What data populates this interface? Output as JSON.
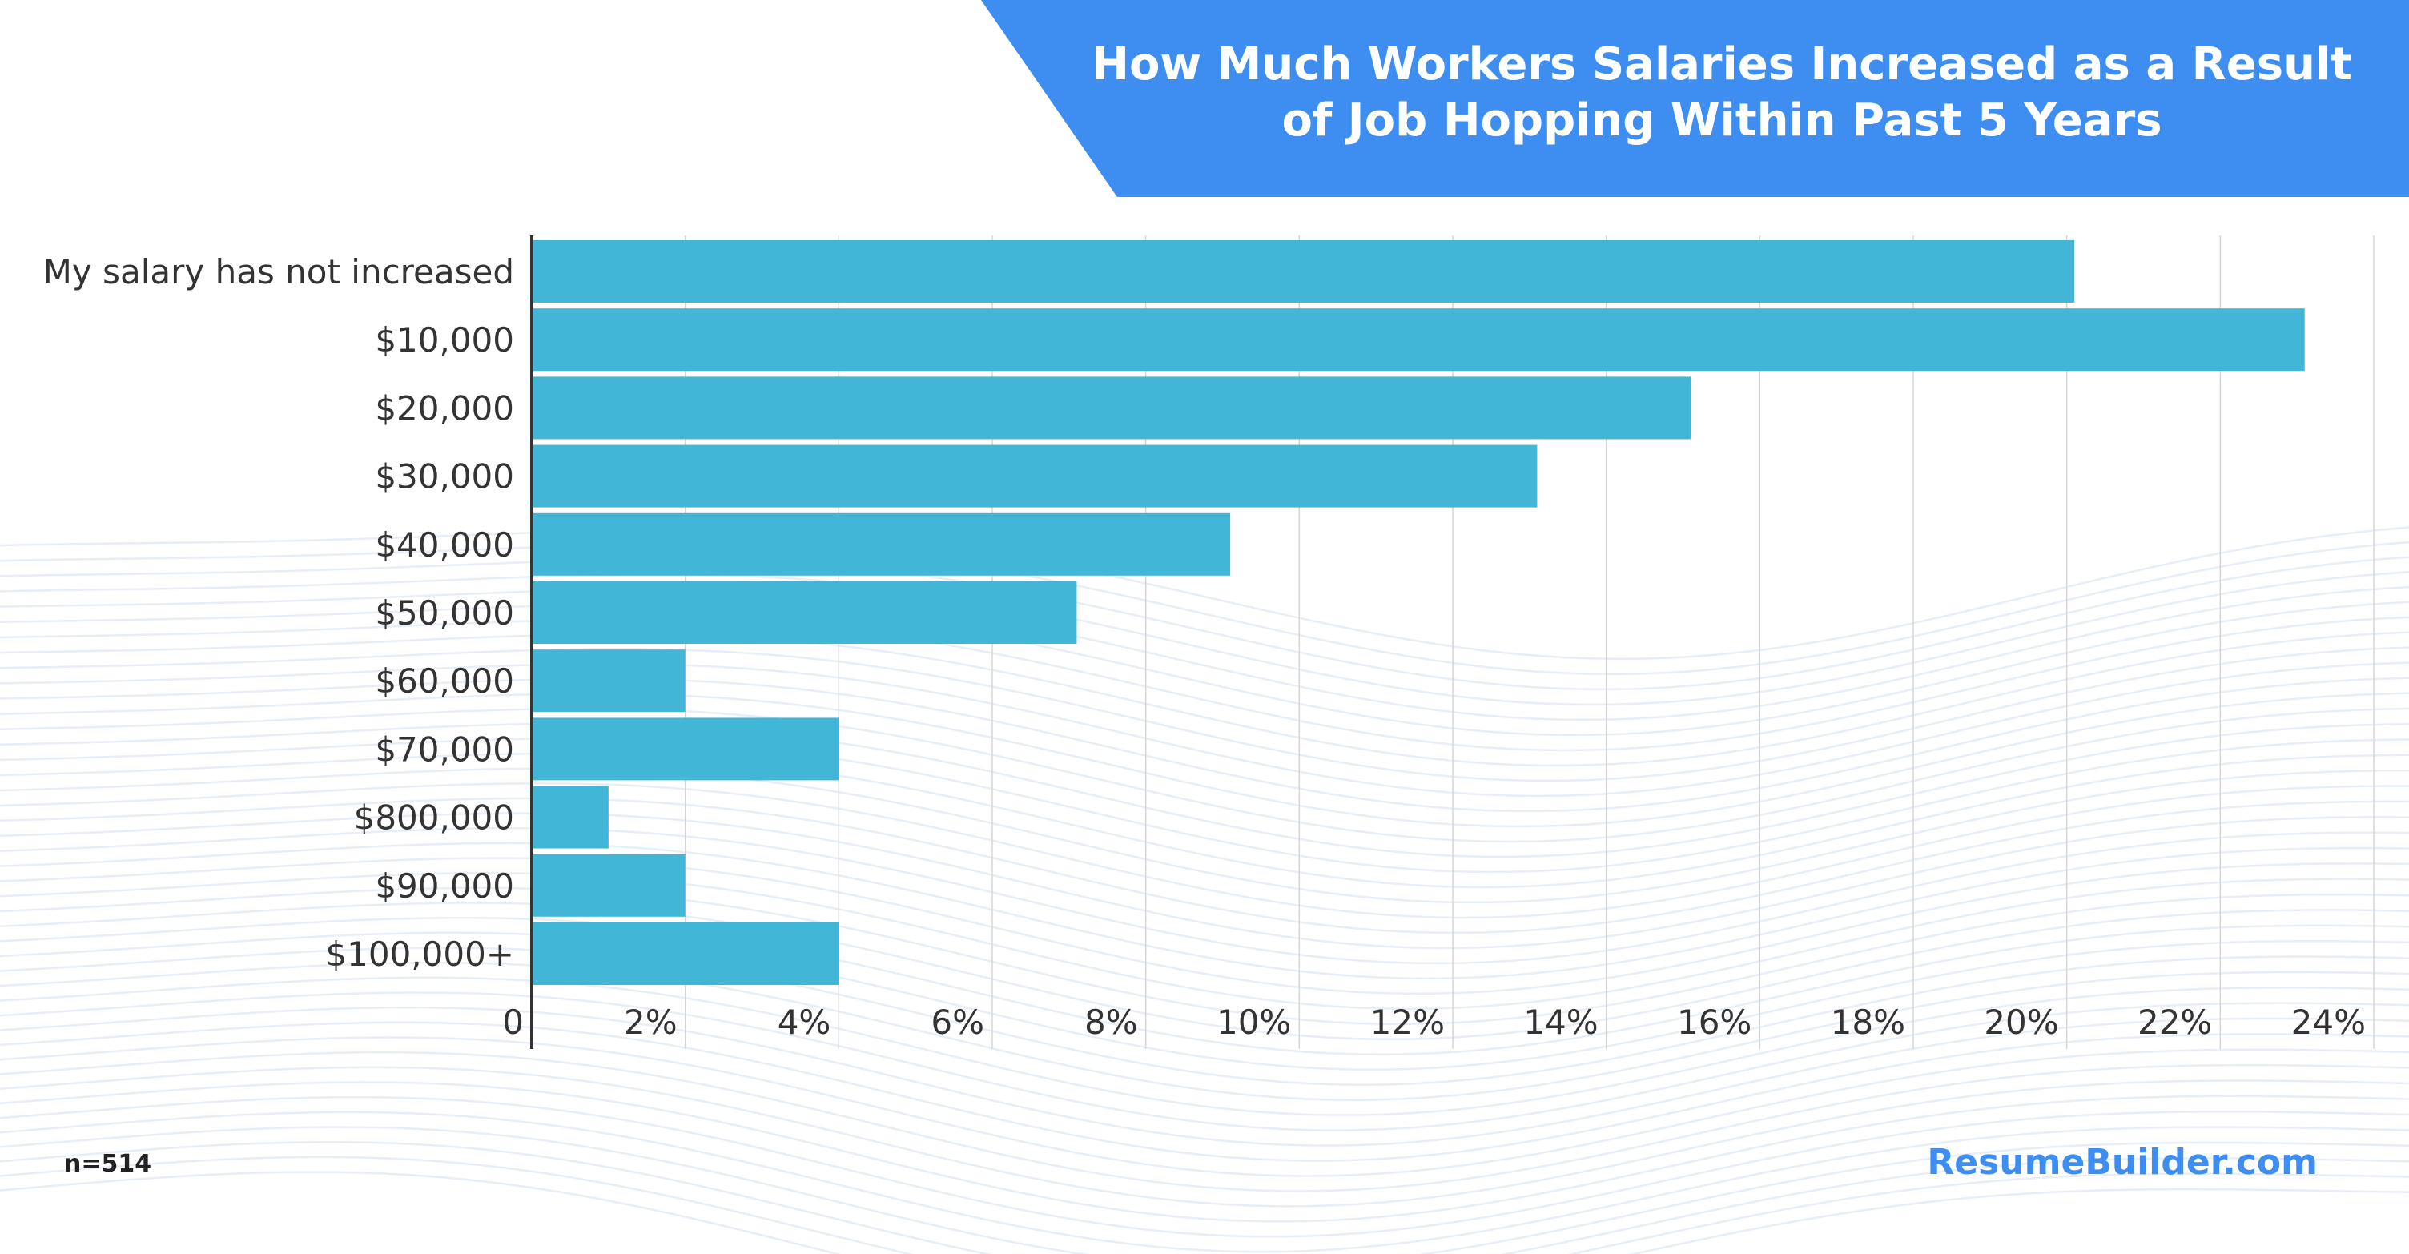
{
  "header": {
    "title_line1": "How Much Workers Salaries Increased as a Result",
    "title_line2": "of Job Hopping Within Past 5 Years",
    "banner_color": "#3d8ef0"
  },
  "footer": {
    "sample": "n=514",
    "brand": "ResumeBuilder.com",
    "brand_color": "#3d8ef0"
  },
  "chart_data": {
    "type": "bar",
    "orientation": "horizontal",
    "title": "How Much Workers Salaries Increased as a Result of Job Hopping Within Past 5 Years",
    "categories": [
      "My salary has not increased",
      "$10,000",
      "$20,000",
      "$30,000",
      "$40,000",
      "$50,000",
      "$60,000",
      "$70,000",
      "$800,000",
      "$90,000",
      "$100,000+"
    ],
    "values": [
      20.1,
      23.1,
      15.1,
      13.1,
      9.1,
      7.1,
      2.0,
      4.0,
      1.0,
      2.0,
      4.0
    ],
    "unit": "%",
    "xlim": [
      0,
      24
    ],
    "x_ticks": [
      "0",
      "2%",
      "4%",
      "6%",
      "8%",
      "10%",
      "12%",
      "14%",
      "16%",
      "18%",
      "20%",
      "22%",
      "24%"
    ],
    "grid": true,
    "bar_color": "#42b6d6",
    "xlabel": "",
    "ylabel": ""
  }
}
